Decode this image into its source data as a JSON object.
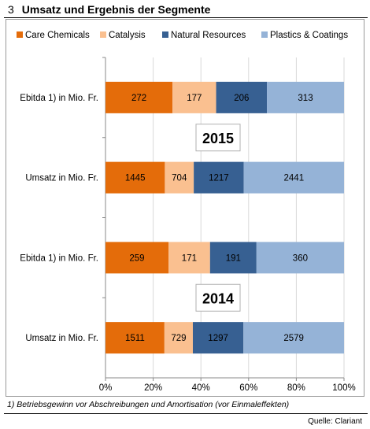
{
  "header": {
    "number": "3",
    "title": "Umsatz und Ergebnis der Segmente"
  },
  "footnote": "1) Betriebsgewinn vor Abschreibungen und Amortisation (vor Einmaleffekten)",
  "source": "Quelle: Clariant",
  "chart_data": {
    "type": "bar",
    "orientation": "horizontal",
    "stacked": "percent",
    "legend_position": "top",
    "grid": true,
    "xlim": [
      0,
      100
    ],
    "x_ticks": [
      "0%",
      "20%",
      "40%",
      "60%",
      "80%",
      "100%"
    ],
    "categories": [
      "Ebitda 1) in Mio. Fr.",
      "Umsatz in Mio. Fr.",
      "Ebitda 1)  in Mio. Fr.",
      "Umsatz in Mio. Fr."
    ],
    "group_labels": [
      "2015",
      "2014"
    ],
    "series": [
      {
        "name": "Care Chemicals",
        "color": "#e46c0a",
        "values": [
          272,
          1445,
          259,
          1511
        ]
      },
      {
        "name": "Catalysis",
        "color": "#fac090",
        "values": [
          177,
          704,
          171,
          729
        ]
      },
      {
        "name": "Natural Resources",
        "color": "#376092",
        "values": [
          206,
          1217,
          191,
          1297
        ]
      },
      {
        "name": "Plastics & Coatings",
        "color": "#95b3d7",
        "values": [
          313,
          2441,
          360,
          2579
        ]
      }
    ]
  }
}
